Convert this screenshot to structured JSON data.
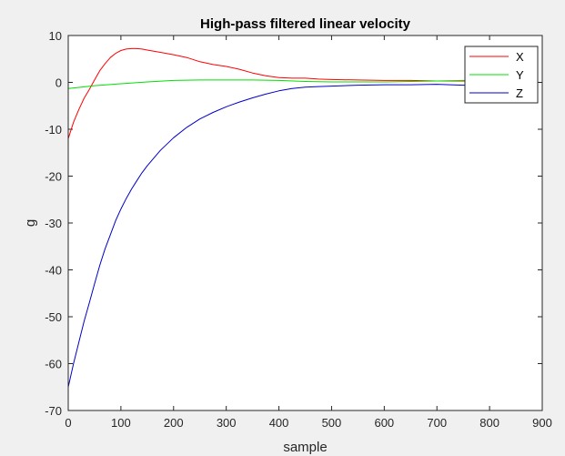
{
  "chart_data": {
    "type": "line",
    "title": "High-pass filtered linear velocity",
    "xlabel": "sample",
    "ylabel": "g",
    "xlim": [
      0,
      900
    ],
    "ylim": [
      -70,
      10
    ],
    "xticks": [
      0,
      100,
      200,
      300,
      400,
      500,
      600,
      700,
      800,
      900
    ],
    "yticks": [
      10,
      0,
      -10,
      -20,
      -30,
      -40,
      -50,
      -60,
      -70
    ],
    "grid": false,
    "legend_position": "top-right",
    "series": [
      {
        "name": "X",
        "color": "#ff0000",
        "x": [
          0,
          10,
          20,
          30,
          40,
          50,
          60,
          70,
          80,
          90,
          100,
          110,
          120,
          130,
          140,
          150,
          175,
          200,
          225,
          250,
          275,
          300,
          325,
          350,
          375,
          400,
          425,
          450,
          475,
          500,
          550,
          600,
          650,
          700,
          750,
          770
        ],
        "y": [
          -12,
          -8.5,
          -5.8,
          -3.4,
          -1.5,
          0.5,
          2.5,
          4.0,
          5.3,
          6.2,
          6.8,
          7.1,
          7.2,
          7.2,
          7.1,
          6.9,
          6.4,
          5.9,
          5.3,
          4.4,
          3.8,
          3.4,
          2.8,
          2.0,
          1.4,
          1.0,
          0.9,
          0.9,
          0.7,
          0.6,
          0.5,
          0.4,
          0.4,
          0.3,
          0.3,
          0.3
        ]
      },
      {
        "name": "Y",
        "color": "#00e000",
        "x": [
          0,
          25,
          50,
          100,
          150,
          200,
          250,
          300,
          350,
          400,
          450,
          500,
          550,
          600,
          650,
          700,
          750,
          770
        ],
        "y": [
          -1.3,
          -1.0,
          -0.7,
          -0.3,
          0.1,
          0.4,
          0.5,
          0.5,
          0.5,
          0.4,
          0.2,
          0.1,
          0.1,
          0.1,
          0.2,
          0.3,
          0.4,
          0.4
        ]
      },
      {
        "name": "Z",
        "color": "#0000c8",
        "x": [
          0,
          10,
          20,
          30,
          40,
          50,
          60,
          70,
          80,
          90,
          100,
          110,
          120,
          130,
          140,
          150,
          175,
          200,
          225,
          250,
          275,
          300,
          325,
          350,
          375,
          400,
          425,
          450,
          475,
          500,
          550,
          600,
          650,
          700,
          750,
          770
        ],
        "y": [
          -65,
          -60,
          -55.5,
          -51,
          -47,
          -43,
          -39,
          -35.5,
          -32.5,
          -29.5,
          -27,
          -24.8,
          -22.8,
          -21,
          -19.3,
          -17.8,
          -14.5,
          -11.8,
          -9.6,
          -7.8,
          -6.4,
          -5.2,
          -4.2,
          -3.3,
          -2.5,
          -1.8,
          -1.3,
          -1.0,
          -0.9,
          -0.8,
          -0.6,
          -0.5,
          -0.5,
          -0.4,
          -0.6,
          -0.5
        ]
      }
    ]
  }
}
